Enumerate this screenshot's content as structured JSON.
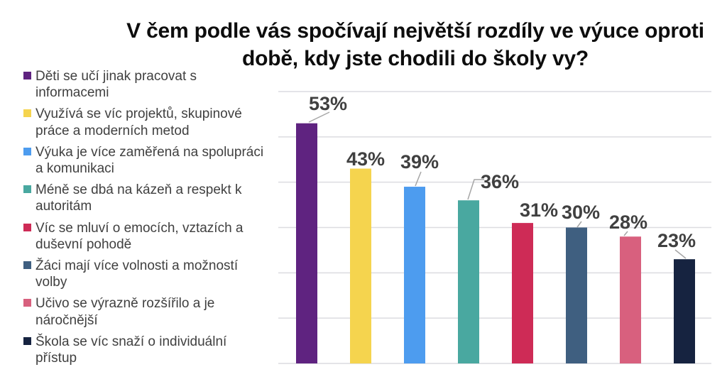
{
  "title": {
    "text": "V čem podle vás spočívají největší rozdíly ve výuce oproti době, kdy jste chodili do školy vy?",
    "lines": [
      "V čem podle vás spočívají největší rozdíly ve výuce oproti",
      "době, kdy jste chodili do školy vy?"
    ]
  },
  "colors": {
    "background": "#ffffff",
    "title_text": "#0d0d0d",
    "legend_text": "#404040",
    "data_label": "#404040",
    "gridline": "#dcdce0",
    "leader_line": "#a6a6a6"
  },
  "legend": {
    "items": [
      {
        "label": "Děti se učí jinak pracovat s informacemi",
        "color": "#5f2380"
      },
      {
        "label": "Využívá se víc projektů, skupinové práce a moderních metod",
        "color": "#f5d44e"
      },
      {
        "label": "Výuka je více zaměřená na spolupráci a komunikaci",
        "color": "#4d9cef"
      },
      {
        "label": "Méně se dbá na kázeň a respekt k autoritám",
        "color": "#49a8a0"
      },
      {
        "label": "Víc se mluví o emocích, vztazích a duševní pohodě",
        "color": "#ce2b56"
      },
      {
        "label": "Žáci mají více volnosti a možností volby",
        "color": "#3f5f80"
      },
      {
        "label": "Učivo se výrazně rozšířilo a je náročnější",
        "color": "#d8607e"
      },
      {
        "label": "Škola se víc snaží o individuální přístup",
        "color": "#162340"
      }
    ]
  },
  "chart_data": {
    "type": "bar",
    "title": "V čem podle vás spočívají největší rozdíly ve výuce oproti době, kdy jste chodili do školy vy?",
    "categories": [
      "Děti se učí jinak pracovat s informacemi",
      "Využívá se víc projektů, skupinové práce a moderních metod",
      "Výuka je více zaměřená na spolupráci a komunikaci",
      "Méně se dbá na kázeň a respekt k autoritám",
      "Víc se mluví o emocích, vztazích a duševní pohodě",
      "Žáci mají více volnosti a možností volby",
      "Učivo se výrazně rozšířilo a je náročnější",
      "Škola se víc snaží o individuální přístup"
    ],
    "values": [
      53,
      43,
      39,
      36,
      31,
      30,
      28,
      23
    ],
    "data_labels": [
      "53%",
      "43%",
      "39%",
      "36%",
      "31%",
      "30%",
      "28%",
      "23%"
    ],
    "series_colors": [
      "#5f2380",
      "#f5d44e",
      "#4d9cef",
      "#49a8a0",
      "#ce2b56",
      "#3f5f80",
      "#d8607e",
      "#162340"
    ],
    "xlabel": "",
    "ylabel": "",
    "ylim": [
      0,
      60
    ],
    "grid": true,
    "grid_interval": 10,
    "axis_tick_labels_visible": false,
    "legend_position": "left"
  }
}
